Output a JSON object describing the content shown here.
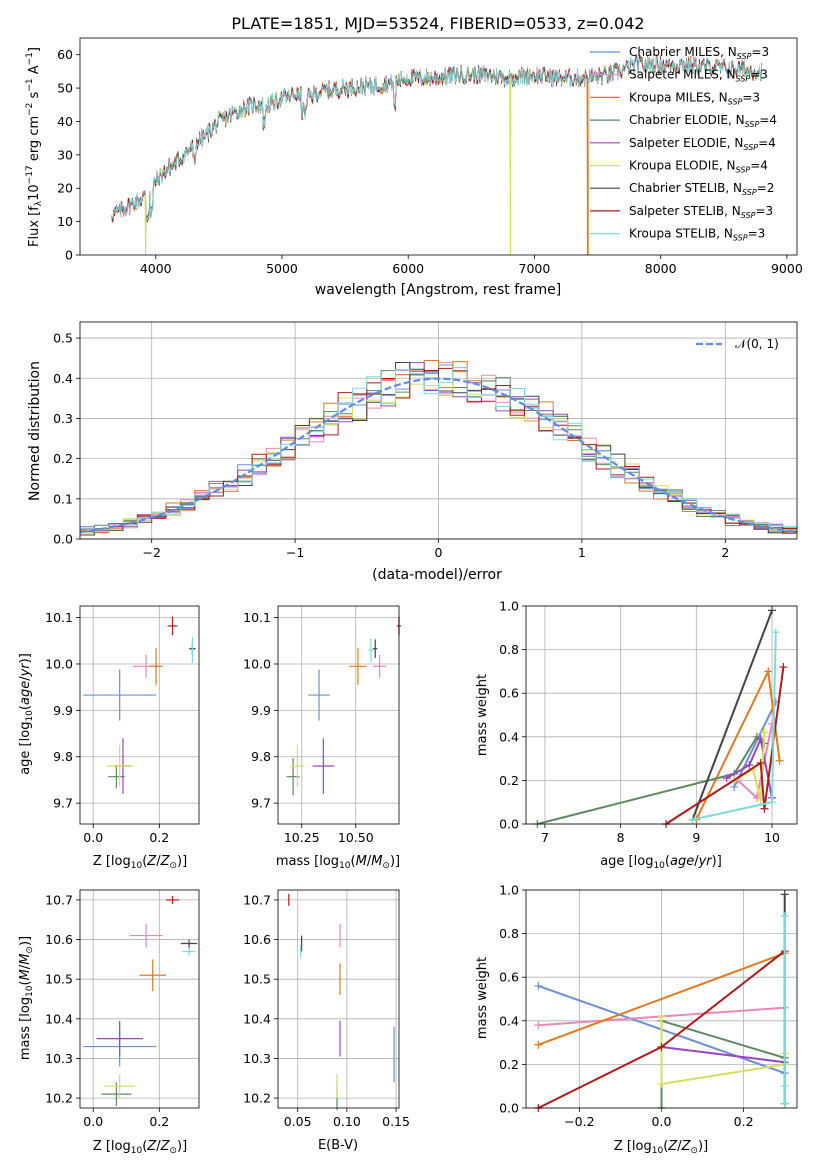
{
  "colors": {
    "Chabrier MILES": "#6a8fd8",
    "Salpeter MILES": "#ec88b8",
    "Kroupa MILES": "#e07b1d",
    "Chabrier ELODIE": "#5b8a60",
    "Salpeter ELODIE": "#9a45c0",
    "Kroupa ELODIE": "#d2e05a",
    "Chabrier STELIB": "#444444",
    "Salpeter STELIB": "#b01a1a",
    "Kroupa STELIB": "#7fdada"
  },
  "chart_data": [
    {
      "id": "spectrum",
      "type": "line",
      "title": "PLATE=1851, MJD=53524, FIBERID=0533, z=0.042",
      "xlabel": "wavelength [Angstrom, rest frame]",
      "ylabel": "Flux [f_λ10^-17 erg cm^-2 s^-1 A^-1]",
      "xlim": [
        3400,
        9080
      ],
      "ylim": [
        0,
        65
      ],
      "xticks": [
        "4000",
        "5000",
        "6000",
        "7000",
        "8000",
        "9000"
      ],
      "yticks": [
        "0",
        "10",
        "20",
        "30",
        "40",
        "50",
        "60"
      ],
      "grid": false,
      "legend_position": "top-right",
      "legend": [
        {
          "text": "Chabrier MILES, N",
          "sub": "SSP",
          "tail": "=3"
        },
        {
          "text": "Salpeter MILES, N",
          "sub": "SSP",
          "tail": "=3"
        },
        {
          "text": "Kroupa MILES, N",
          "sub": "SSP",
          "tail": "=3"
        },
        {
          "text": "Chabrier ELODIE, N",
          "sub": "SSP",
          "tail": "=4"
        },
        {
          "text": "Salpeter ELODIE, N",
          "sub": "SSP",
          "tail": "=4"
        },
        {
          "text": "Kroupa ELODIE, N",
          "sub": "SSP",
          "tail": "=4"
        },
        {
          "text": "Chabrier STELIB, N",
          "sub": "SSP",
          "tail": "=2"
        },
        {
          "text": "Salpeter STELIB, N",
          "sub": "SSP",
          "tail": "=3"
        },
        {
          "text": "Kroupa STELIB, N",
          "sub": "SSP",
          "tail": "=3"
        }
      ],
      "wavelength_range": [
        3650,
        8800
      ],
      "continuum": [
        [
          3650,
          12
        ],
        [
          3800,
          15
        ],
        [
          3900,
          17
        ],
        [
          4000,
          22
        ],
        [
          4100,
          26
        ],
        [
          4200,
          29
        ],
        [
          4300,
          33
        ],
        [
          4400,
          36
        ],
        [
          4500,
          40
        ],
        [
          4600,
          42
        ],
        [
          4700,
          44
        ],
        [
          4800,
          45
        ],
        [
          4900,
          45
        ],
        [
          5000,
          47
        ],
        [
          5100,
          48
        ],
        [
          5200,
          47
        ],
        [
          5300,
          49
        ],
        [
          5500,
          50
        ],
        [
          5800,
          51
        ],
        [
          6000,
          53
        ],
        [
          6200,
          53
        ],
        [
          6400,
          54
        ],
        [
          6600,
          54
        ],
        [
          6800,
          53
        ],
        [
          7000,
          54
        ],
        [
          7200,
          53
        ],
        [
          7400,
          53
        ],
        [
          7600,
          54
        ],
        [
          7800,
          57
        ],
        [
          8000,
          57
        ],
        [
          8200,
          57
        ],
        [
          8500,
          56
        ],
        [
          8800,
          55
        ]
      ],
      "dropouts": [
        {
          "model": "Kroupa ELODIE",
          "wavelength": 3920
        },
        {
          "model": "Kroupa ELODIE",
          "wavelength": 6810
        },
        {
          "model": "Kroupa MILES",
          "wavelength": 7420
        }
      ]
    },
    {
      "id": "residuals",
      "type": "line",
      "xlabel": "(data-model)/error",
      "ylabel": "Normed distribution",
      "xlim": [
        -2.5,
        2.5
      ],
      "ylim": [
        0,
        0.54
      ],
      "xticks": [
        "−2",
        "−1",
        "0",
        "1",
        "2"
      ],
      "yticks": [
        "0.0",
        "0.1",
        "0.2",
        "0.3",
        "0.4",
        "0.5"
      ],
      "grid": true,
      "legend_position": "top-right",
      "legend_label": "𝒩(0, 1)",
      "reference_curve": "standard normal N(0,1), mean 0, sigma 1",
      "histogram": "step histograms, bin width 0.1, one per model (9 models)"
    },
    {
      "id": "age_vs_Z",
      "type": "scatter",
      "xlabel": "Z [log10(Z/Z⊙)]",
      "ylabel": "age  [log10(age/yr)]",
      "xlim": [
        -0.04,
        0.32
      ],
      "ylim": [
        9.655,
        10.125
      ],
      "xticks": [
        "0.0",
        "0.2"
      ],
      "yticks": [
        "9.7",
        "9.8",
        "9.9",
        "10.0",
        "10.1"
      ],
      "grid": true,
      "points": [
        {
          "model": "Chabrier MILES",
          "x": 0.08,
          "y": 9.933,
          "xerr": 0.11,
          "yerr": 0.055
        },
        {
          "model": "Salpeter MILES",
          "x": 0.16,
          "y": 9.995,
          "xerr": 0.04,
          "yerr": 0.025
        },
        {
          "model": "Kroupa MILES",
          "x": 0.19,
          "y": 9.995,
          "xerr": 0.02,
          "yerr": 0.04
        },
        {
          "model": "Chabrier ELODIE",
          "x": 0.07,
          "y": 9.757,
          "xerr": 0.025,
          "yerr": 0.025
        },
        {
          "model": "Salpeter ELODIE",
          "x": 0.09,
          "y": 9.78,
          "xerr": 0.025,
          "yerr": 0.06
        },
        {
          "model": "Kroupa ELODIE",
          "x": 0.08,
          "y": 9.78,
          "xerr": 0.04,
          "yerr": 0.045
        },
        {
          "model": "Chabrier STELIB",
          "x": 0.3,
          "y": 10.033,
          "xerr": 0.01,
          "yerr": 0.012
        },
        {
          "model": "Salpeter STELIB",
          "x": 0.24,
          "y": 10.082,
          "xerr": 0.015,
          "yerr": 0.02
        },
        {
          "model": "Kroupa STELIB",
          "x": 0.3,
          "y": 10.03,
          "xerr": 0.005,
          "yerr": 0.028
        }
      ]
    },
    {
      "id": "age_vs_mass",
      "type": "scatter",
      "xlabel": "mass [log10(M/M⊙)]",
      "ylabel": "",
      "xlim": [
        10.14,
        10.7
      ],
      "ylim": [
        9.655,
        10.125
      ],
      "xticks": [
        "10.25",
        "10.50"
      ],
      "yticks": [
        "9.7",
        "9.8",
        "9.9",
        "10.0",
        "10.1"
      ],
      "grid": true,
      "points": [
        {
          "model": "Chabrier MILES",
          "x": 10.33,
          "y": 9.933,
          "xerr": 0.05,
          "yerr": 0.055
        },
        {
          "model": "Salpeter MILES",
          "x": 10.61,
          "y": 9.995,
          "xerr": 0.03,
          "yerr": 0.025
        },
        {
          "model": "Kroupa MILES",
          "x": 10.51,
          "y": 9.995,
          "xerr": 0.04,
          "yerr": 0.04
        },
        {
          "model": "Chabrier ELODIE",
          "x": 10.21,
          "y": 9.757,
          "xerr": 0.03,
          "yerr": 0.04
        },
        {
          "model": "Salpeter ELODIE",
          "x": 10.35,
          "y": 9.78,
          "xerr": 0.05,
          "yerr": 0.06
        },
        {
          "model": "Kroupa ELODIE",
          "x": 10.23,
          "y": 9.78,
          "xerr": 0.03,
          "yerr": 0.045
        },
        {
          "model": "Chabrier STELIB",
          "x": 10.59,
          "y": 10.033,
          "xerr": 0.01,
          "yerr": 0.02
        },
        {
          "model": "Salpeter STELIB",
          "x": 10.7,
          "y": 10.082,
          "xerr": 0.01,
          "yerr": 0.02
        },
        {
          "model": "Kroupa STELIB",
          "x": 10.57,
          "y": 10.03,
          "xerr": 0.01,
          "yerr": 0.025
        }
      ]
    },
    {
      "id": "massweight_vs_age",
      "type": "line",
      "xlabel": "age  [log10(age/yr)]",
      "ylabel": "mass weight",
      "xlim": [
        6.75,
        10.33
      ],
      "ylim": [
        0,
        1
      ],
      "xticks": [
        "7",
        "8",
        "9",
        "10"
      ],
      "yticks": [
        "0.0",
        "0.2",
        "0.4",
        "0.6",
        "0.8",
        "1.0"
      ],
      "grid": true,
      "series": [
        {
          "model": "Chabrier MILES",
          "x": [
            9.5,
            10.05
          ],
          "y": [
            0.17,
            0.56
          ]
        },
        {
          "model": "Salpeter MILES",
          "x": [
            9.55,
            9.8,
            10.0
          ],
          "y": [
            0.2,
            0.12,
            0.46
          ]
        },
        {
          "model": "Kroupa MILES",
          "x": [
            9.0,
            9.95,
            10.1
          ],
          "y": [
            0.02,
            0.7,
            0.29
          ]
        },
        {
          "model": "Chabrier ELODIE",
          "x": [
            6.9,
            9.5,
            9.8,
            9.9
          ],
          "y": [
            0.0,
            0.23,
            0.4,
            0.37
          ]
        },
        {
          "model": "Salpeter ELODIE",
          "x": [
            9.4,
            9.7,
            9.85,
            10.0
          ],
          "y": [
            0.21,
            0.27,
            0.39,
            0.12
          ]
        },
        {
          "model": "Kroupa ELODIE",
          "x": [
            9.5,
            9.75,
            9.85,
            9.9
          ],
          "y": [
            0.2,
            0.25,
            0.11,
            0.42
          ]
        },
        {
          "model": "Chabrier STELIB",
          "x": [
            8.95,
            10.0
          ],
          "y": [
            0.02,
            0.98
          ]
        },
        {
          "model": "Salpeter STELIB",
          "x": [
            8.6,
            9.85,
            9.9,
            10.15
          ],
          "y": [
            0.0,
            0.28,
            0.07,
            0.72
          ]
        },
        {
          "model": "Kroupa STELIB",
          "x": [
            8.95,
            10.0,
            10.05
          ],
          "y": [
            0.02,
            0.1,
            0.88
          ]
        }
      ]
    },
    {
      "id": "mass_vs_Z",
      "type": "scatter",
      "xlabel": "Z [log10(Z/Z⊙)]",
      "ylabel": "mass [log10(M/M⊙)]",
      "xlim": [
        -0.04,
        0.32
      ],
      "ylim": [
        10.175,
        10.725
      ],
      "xticks": [
        "0.0",
        "0.2"
      ],
      "yticks": [
        "10.2",
        "10.3",
        "10.4",
        "10.5",
        "10.6",
        "10.7"
      ],
      "grid": true,
      "points": [
        {
          "model": "Chabrier MILES",
          "x": 0.08,
          "y": 10.33,
          "xerr": 0.11,
          "yerr": 0.05
        },
        {
          "model": "Salpeter MILES",
          "x": 0.16,
          "y": 10.61,
          "xerr": 0.05,
          "yerr": 0.03
        },
        {
          "model": "Kroupa MILES",
          "x": 0.18,
          "y": 10.51,
          "xerr": 0.04,
          "yerr": 0.04
        },
        {
          "model": "Chabrier ELODIE",
          "x": 0.07,
          "y": 10.21,
          "xerr": 0.045,
          "yerr": 0.03
        },
        {
          "model": "Salpeter ELODIE",
          "x": 0.08,
          "y": 10.35,
          "xerr": 0.07,
          "yerr": 0.045
        },
        {
          "model": "Kroupa ELODIE",
          "x": 0.08,
          "y": 10.23,
          "xerr": 0.045,
          "yerr": 0.03
        },
        {
          "model": "Chabrier STELIB",
          "x": 0.29,
          "y": 10.59,
          "xerr": 0.025,
          "yerr": 0.01
        },
        {
          "model": "Salpeter STELIB",
          "x": 0.24,
          "y": 10.7,
          "xerr": 0.02,
          "yerr": 0.01
        },
        {
          "model": "Kroupa STELIB",
          "x": 0.29,
          "y": 10.57,
          "xerr": 0.02,
          "yerr": 0.01
        }
      ]
    },
    {
      "id": "mass_vs_EBV",
      "type": "scatter",
      "xlabel": "E(B-V)",
      "ylabel": "",
      "xlim": [
        0.03,
        0.153
      ],
      "ylim": [
        10.175,
        10.725
      ],
      "xticks": [
        "0.05",
        "0.10",
        "0.15"
      ],
      "yticks": [
        "10.2",
        "10.3",
        "10.4",
        "10.5",
        "10.6",
        "10.7"
      ],
      "grid": true,
      "points": [
        {
          "model": "Chabrier MILES",
          "x": 0.148,
          "y": 10.31,
          "xerr": 0.0,
          "yerr": 0.07
        },
        {
          "model": "Salpeter MILES",
          "x": 0.093,
          "y": 10.61,
          "xerr": 0.0,
          "yerr": 0.03
        },
        {
          "model": "Kroupa MILES",
          "x": 0.093,
          "y": 10.5,
          "xerr": 0.0,
          "yerr": 0.04
        },
        {
          "model": "Chabrier ELODIE",
          "x": 0.09,
          "y": 10.2,
          "xerr": 0.0,
          "yerr": 0.03
        },
        {
          "model": "Salpeter ELODIE",
          "x": 0.093,
          "y": 10.35,
          "xerr": 0.0,
          "yerr": 0.045
        },
        {
          "model": "Kroupa ELODIE",
          "x": 0.09,
          "y": 10.23,
          "xerr": 0.0,
          "yerr": 0.03
        },
        {
          "model": "Chabrier STELIB",
          "x": 0.054,
          "y": 10.59,
          "xerr": 0.0,
          "yerr": 0.02
        },
        {
          "model": "Salpeter STELIB",
          "x": 0.041,
          "y": 10.7,
          "xerr": 0.0,
          "yerr": 0.015
        },
        {
          "model": "Kroupa STELIB",
          "x": 0.053,
          "y": 10.57,
          "xerr": 0.0,
          "yerr": 0.015
        }
      ]
    },
    {
      "id": "massweight_vs_Z",
      "type": "line",
      "xlabel": "Z [log10(Z/Z⊙)]",
      "ylabel": "mass weight",
      "xlim": [
        -0.33,
        0.33
      ],
      "ylim": [
        0,
        1
      ],
      "xticks": [
        "−0.2",
        "0.0",
        "0.2"
      ],
      "yticks": [
        "0.0",
        "0.2",
        "0.4",
        "0.6",
        "0.8",
        "1.0"
      ],
      "grid": true,
      "series": [
        {
          "model": "Chabrier MILES",
          "x": [
            -0.3,
            0.3
          ],
          "y": [
            0.56,
            0.16
          ]
        },
        {
          "model": "Salpeter MILES",
          "x": [
            -0.3,
            0.3
          ],
          "y": [
            0.38,
            0.46
          ]
        },
        {
          "model": "Kroupa MILES",
          "x": [
            -0.3,
            0.3
          ],
          "y": [
            0.29,
            0.71
          ]
        },
        {
          "model": "Chabrier ELODIE",
          "x": [
            0.0,
            0.0,
            0.3,
            0.3
          ],
          "y": [
            0.0,
            0.4,
            0.23,
            0.2
          ]
        },
        {
          "model": "Salpeter ELODIE",
          "x": [
            0.0,
            0.3
          ],
          "y": [
            0.28,
            0.21
          ]
        },
        {
          "model": "Kroupa ELODIE",
          "x": [
            0.0,
            0.0,
            0.3,
            0.3
          ],
          "y": [
            0.42,
            0.11,
            0.2,
            0.25
          ]
        },
        {
          "model": "Chabrier STELIB",
          "x": [
            0.3,
            0.3
          ],
          "y": [
            0.98,
            0.02
          ]
        },
        {
          "model": "Salpeter STELIB",
          "x": [
            -0.3,
            0.0,
            0.3
          ],
          "y": [
            0.0,
            0.28,
            0.72
          ]
        },
        {
          "model": "Kroupa STELIB",
          "x": [
            0.3,
            0.3,
            0.3
          ],
          "y": [
            0.88,
            0.1,
            0.02
          ]
        }
      ]
    }
  ]
}
